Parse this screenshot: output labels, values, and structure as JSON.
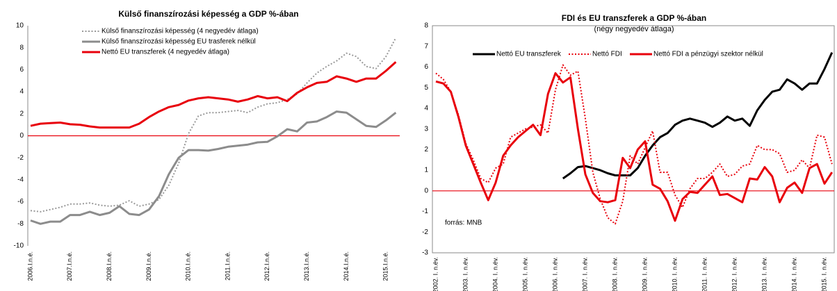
{
  "chart_data": [
    {
      "type": "line",
      "title": "Külső finanszírozási képesség a GDP %-ában",
      "categories": [
        "2006.I.n.é.",
        null,
        null,
        null,
        "2007.I.n.é.",
        null,
        null,
        null,
        "2008.I.n.é.",
        null,
        null,
        null,
        "2009.I.n.é.",
        null,
        null,
        null,
        "2010.I.n.é.",
        null,
        null,
        null,
        "2011.I.n.é.",
        null,
        null,
        null,
        "2012.I.n.é.",
        null,
        null,
        null,
        "2013.I.n.é.",
        null,
        null,
        null,
        "2014.I.n.é.",
        null,
        null,
        null,
        "2015.I.n.é.",
        null
      ],
      "series": [
        {
          "name": "Külső finanszírozási képesség (4 negyedév átlaga)",
          "color": "#999999",
          "style": "dotted",
          "values": [
            -6.8,
            -6.9,
            -6.7,
            -6.5,
            -6.2,
            -6.2,
            -6.1,
            -6.3,
            -6.4,
            -6.3,
            -5.9,
            -6.4,
            -6.2,
            -5.8,
            -4.5,
            -2.5,
            0.2,
            1.8,
            2.1,
            2.1,
            2.2,
            2.3,
            2.1,
            2.6,
            2.9,
            3.0,
            3.3,
            3.8,
            4.8,
            5.7,
            6.3,
            6.8,
            7.5,
            7.2,
            6.3,
            6.1,
            7.2,
            8.9
          ]
        },
        {
          "name": "Külső finanszírozási képesség EU trasferek nélkül",
          "color": "#8c8c8c",
          "style": "solid",
          "values": [
            -7.7,
            -8.0,
            -7.8,
            -7.8,
            -7.2,
            -7.2,
            -6.9,
            -7.2,
            -7.0,
            -6.4,
            -7.1,
            -7.2,
            -6.7,
            -5.5,
            -3.5,
            -2.0,
            -1.3,
            -1.3,
            -1.35,
            -1.2,
            -1.0,
            -0.9,
            -0.8,
            -0.6,
            -0.55,
            -0.05,
            0.6,
            0.4,
            1.2,
            1.3,
            1.7,
            2.2,
            2.1,
            1.5,
            0.9,
            0.8,
            1.4,
            2.1
          ]
        },
        {
          "name": "Nettó EU transzferek (4 negyedév átlaga)",
          "color": "#e8000b",
          "style": "solid",
          "values": [
            0.9,
            1.1,
            1.15,
            1.2,
            1.05,
            1.0,
            0.85,
            0.75,
            0.75,
            0.75,
            0.75,
            1.1,
            1.7,
            2.2,
            2.6,
            2.8,
            3.2,
            3.4,
            3.5,
            3.4,
            3.3,
            3.1,
            3.3,
            3.6,
            3.4,
            3.5,
            3.15,
            3.9,
            4.4,
            4.8,
            4.9,
            5.4,
            5.2,
            4.9,
            5.2,
            5.2,
            5.9,
            6.7
          ]
        }
      ],
      "ylim": [
        -10,
        10
      ],
      "yticks": [
        -10,
        -8,
        -6,
        -4,
        -2,
        0,
        2,
        4,
        6,
        8,
        10
      ],
      "grid": false
    },
    {
      "type": "line",
      "title": "FDI és EU transzferek a GDP %-ában",
      "subtitle": "(négy negyedév átlaga)",
      "annotation": "forrás: MNB",
      "categories": [
        "2002. I. n.év.",
        null,
        null,
        null,
        "2003. I. n.év.",
        null,
        null,
        null,
        "2004. I. n.év.",
        null,
        null,
        null,
        "2005. I. n.év.",
        null,
        null,
        null,
        "2006. I. n.év.",
        null,
        null,
        null,
        "2007. I. n.év.",
        null,
        null,
        null,
        "2008. I. n.év.",
        null,
        null,
        null,
        "2009. I. n.év.",
        null,
        null,
        null,
        "2010. I. n.év.",
        null,
        null,
        null,
        "2011. I. n.év.",
        null,
        null,
        null,
        "2012. I. n.év.",
        null,
        null,
        null,
        "2013. I. n.év.",
        null,
        null,
        null,
        "2014. I. n.év.",
        null,
        null,
        null,
        "2015. I. n.év.",
        null
      ],
      "series": [
        {
          "name": "Nettó EU transzferek",
          "color": "#000000",
          "style": "solid",
          "values": [
            null,
            null,
            null,
            null,
            null,
            null,
            null,
            null,
            null,
            null,
            null,
            null,
            null,
            null,
            null,
            null,
            null,
            0.6,
            0.85,
            1.15,
            1.2,
            1.1,
            1.0,
            0.85,
            0.75,
            0.75,
            0.75,
            1.1,
            1.7,
            2.2,
            2.6,
            2.8,
            3.2,
            3.4,
            3.5,
            3.4,
            3.3,
            3.1,
            3.3,
            3.6,
            3.4,
            3.5,
            3.15,
            3.9,
            4.4,
            4.8,
            4.9,
            5.4,
            5.2,
            4.9,
            5.2,
            5.2,
            5.9,
            6.7
          ]
        },
        {
          "name": "Nettó FDI",
          "color": "#e8000b",
          "style": "dotted",
          "values": [
            5.7,
            5.4,
            4.8,
            3.7,
            2.3,
            1.5,
            0.6,
            0.4,
            1.1,
            1.3,
            2.6,
            2.8,
            3.0,
            3.1,
            3.2,
            2.8,
            4.9,
            6.1,
            5.6,
            5.8,
            3.5,
            0.9,
            -0.4,
            -1.3,
            -1.6,
            -0.5,
            1.7,
            1.3,
            2.1,
            2.9,
            0.9,
            0.9,
            -0.2,
            -0.8,
            0.1,
            0.6,
            0.6,
            0.9,
            1.3,
            0.7,
            0.8,
            1.2,
            1.3,
            2.2,
            2.0,
            2.0,
            1.8,
            0.9,
            1.0,
            1.5,
            1.1,
            2.7,
            2.6,
            1.3
          ]
        },
        {
          "name": "Nettó FDI a pénzügyi szektor nélkül",
          "color": "#e8000b",
          "style": "solid",
          "values": [
            5.3,
            5.2,
            4.8,
            3.6,
            2.2,
            1.3,
            0.4,
            -0.45,
            0.4,
            1.7,
            2.2,
            2.6,
            2.9,
            3.2,
            2.7,
            4.7,
            5.7,
            5.25,
            5.5,
            3.0,
            0.8,
            -0.1,
            -0.5,
            -0.55,
            -0.45,
            1.6,
            1.1,
            2.0,
            2.4,
            0.3,
            0.1,
            -0.5,
            -1.45,
            -0.4,
            -0.05,
            -0.1,
            0.3,
            0.7,
            -0.2,
            -0.15,
            -0.35,
            -0.55,
            0.6,
            0.55,
            1.15,
            0.7,
            -0.55,
            0.15,
            0.4,
            -0.1,
            1.1,
            1.3,
            0.35,
            0.9
          ]
        }
      ],
      "ylim": [
        -3,
        8
      ],
      "yticks": [
        -3,
        -2,
        -1,
        0,
        1,
        2,
        3,
        4,
        5,
        6,
        7,
        8
      ],
      "grid": false
    }
  ]
}
